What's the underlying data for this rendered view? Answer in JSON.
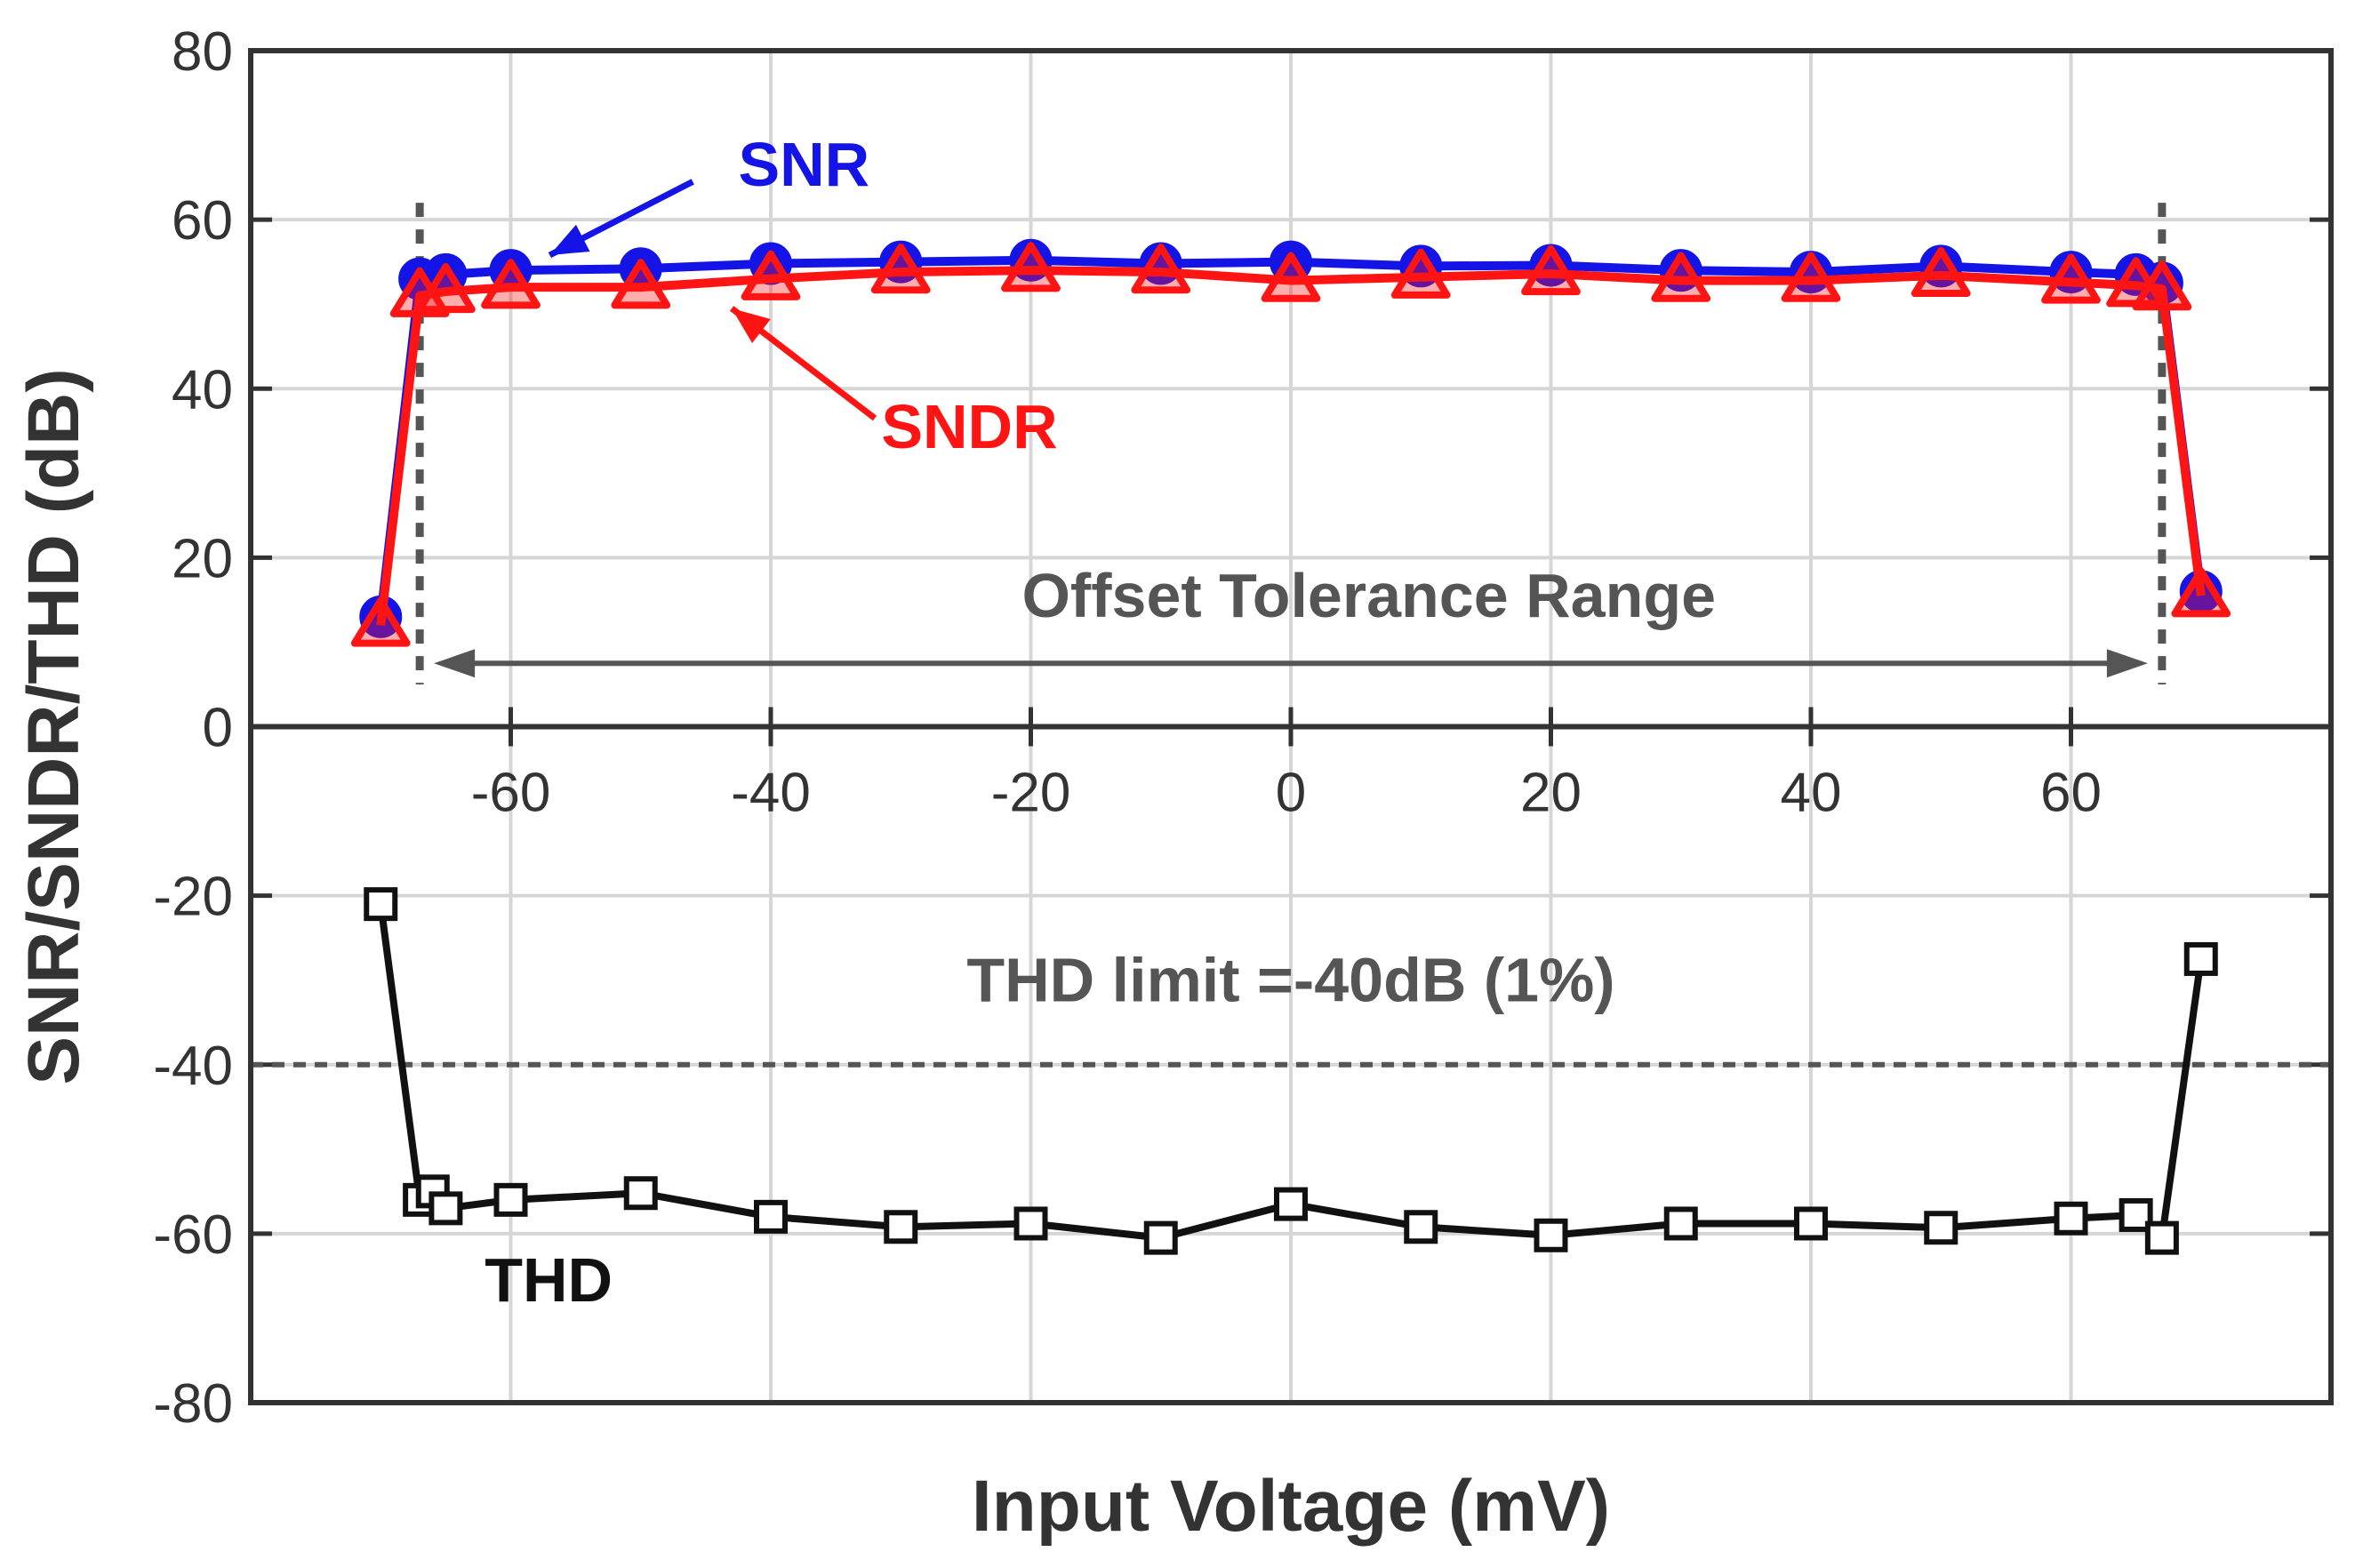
{
  "chart_data": {
    "type": "line",
    "title": "",
    "xlabel": "Input Voltage (mV)",
    "ylabel": "SNR/SNDR/THD (dB)",
    "xlim": [
      -80,
      80
    ],
    "ylim": [
      -80,
      80
    ],
    "x_ticks": [
      "-60",
      "-40",
      "-20",
      "0",
      "20",
      "40",
      "60"
    ],
    "y_ticks": [
      "80",
      "60",
      "40",
      "20",
      "0",
      "-20",
      "-40",
      "-60",
      "-80"
    ],
    "grid": true,
    "series": [
      {
        "name": "SNR",
        "color": "#1414e6",
        "marker": "circle",
        "x": [
          -70,
          -67,
          -65,
          -60,
          -50,
          -40,
          -30,
          -20,
          -10,
          0,
          10,
          20,
          30,
          40,
          50,
          60,
          65,
          67,
          70
        ],
        "y": [
          13,
          53,
          53.5,
          54,
          54.2,
          54.8,
          55,
          55.2,
          54.8,
          55,
          54.5,
          54.6,
          54,
          53.8,
          54.5,
          53.8,
          53.5,
          52.5,
          16
        ]
      },
      {
        "name": "SNDR",
        "color": "#ff1414",
        "marker": "triangle",
        "x": [
          -70,
          -67,
          -65,
          -60,
          -50,
          -40,
          -30,
          -20,
          -10,
          0,
          10,
          20,
          30,
          40,
          50,
          60,
          65,
          67,
          70
        ],
        "y": [
          12,
          51,
          51.5,
          52,
          52,
          53,
          53.8,
          54,
          53.8,
          52.8,
          53.2,
          53.6,
          52.8,
          52.8,
          53.4,
          52.6,
          52.2,
          51.8,
          15.5
        ]
      },
      {
        "name": "THD",
        "color": "#111111",
        "marker": "square",
        "x": [
          -70,
          -67,
          -66,
          -65,
          -60,
          -50,
          -40,
          -30,
          -20,
          -10,
          0,
          10,
          20,
          30,
          40,
          50,
          60,
          65,
          67,
          70
        ],
        "y": [
          -21,
          -56,
          -55,
          -57,
          -56,
          -55.2,
          -58,
          -59.2,
          -58.8,
          -60.5,
          -56.5,
          -59.2,
          -60.2,
          -58.8,
          -58.8,
          -59.3,
          -58.2,
          -57.8,
          -60.5,
          -27.5
        ]
      }
    ],
    "reference_lines": {
      "thd_limit": -40,
      "offset_range": [
        -67,
        67
      ]
    },
    "annotations": {
      "snr_label": "SNR",
      "sndr_label": "SNDR",
      "range_label": "Offset Tolerance Range",
      "limit_label": "THD limit =-40dB (1%)",
      "thd_label": "THD"
    }
  }
}
